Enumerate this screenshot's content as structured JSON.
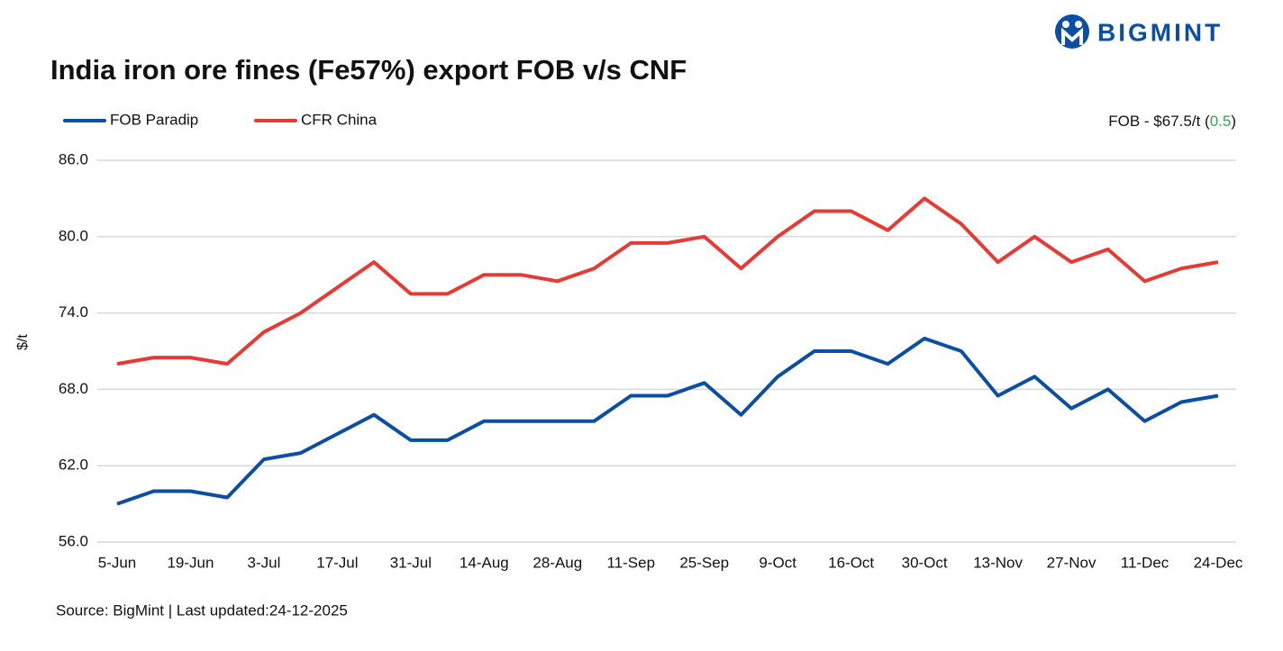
{
  "brand": "BIGMINT",
  "chart_data": {
    "type": "line",
    "title": "India iron ore fines (Fe57%) export FOB v/s CNF",
    "y_label": "$/t",
    "annotation": {
      "prefix": "FOB - $67.5/t (",
      "change": "0.5",
      "suffix": ")",
      "change_color": "#2ea84f"
    },
    "source": "Source: BigMint | Last updated:24-12-2025",
    "categories": [
      "5-Jun",
      null,
      "19-Jun",
      null,
      "3-Jul",
      null,
      "17-Jul",
      null,
      "31-Jul",
      null,
      "14-Aug",
      null,
      "28-Aug",
      null,
      "11-Sep",
      null,
      "25-Sep",
      null,
      "9-Oct",
      null,
      "16-Oct",
      null,
      "30-Oct",
      null,
      "13-Nov",
      null,
      "27-Nov",
      null,
      "11-Dec",
      null,
      "24-Dec"
    ],
    "series": [
      {
        "name": "FOB Paradip",
        "color": "#0b4ea2",
        "values": [
          59.0,
          60.0,
          60.0,
          59.5,
          62.5,
          63.0,
          64.5,
          66.0,
          64.0,
          64.0,
          65.5,
          65.5,
          65.5,
          65.5,
          67.5,
          67.5,
          68.5,
          66.0,
          69.0,
          71.0,
          71.0,
          70.0,
          72.0,
          71.0,
          67.5,
          69.0,
          66.5,
          68.0,
          65.5,
          67.0,
          67.5
        ]
      },
      {
        "name": "CFR China",
        "color": "#e63a35",
        "values": [
          70.0,
          70.5,
          70.5,
          70.0,
          72.5,
          74.0,
          76.0,
          78.0,
          75.5,
          75.5,
          77.0,
          77.0,
          76.5,
          77.5,
          79.5,
          79.5,
          80.0,
          77.5,
          80.0,
          82.0,
          82.0,
          80.5,
          83.0,
          81.0,
          78.0,
          80.0,
          78.0,
          79.0,
          76.5,
          77.5,
          78.0
        ]
      }
    ],
    "ylim": [
      56,
      86
    ],
    "yticks": [
      {
        "value": 56,
        "label": "56.0"
      },
      {
        "value": 62,
        "label": "62.0"
      },
      {
        "value": 68,
        "label": "68.0"
      },
      {
        "value": 74,
        "label": "74.0"
      },
      {
        "value": 80,
        "label": "80.0"
      },
      {
        "value": 86,
        "label": "86.0"
      }
    ],
    "grid": true
  }
}
